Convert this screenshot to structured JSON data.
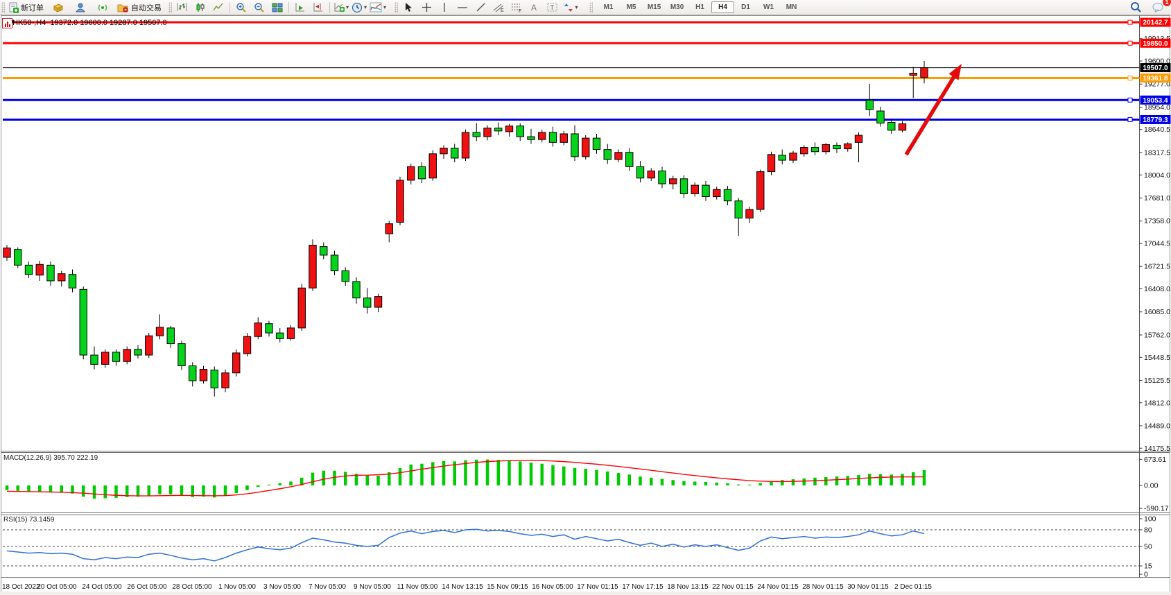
{
  "toolbar": {
    "new_order_label": "新订单",
    "autotrading_label": "自动交易",
    "icons": [
      "new-order",
      "market-watch",
      "community",
      "signal",
      "autotrading",
      "bar-chart",
      "candlestick-chart",
      "line-chart",
      "zoom-in",
      "zoom-out",
      "tile-windows",
      "auto-scroll",
      "chart-shift",
      "new-chart",
      "profiles",
      "indicators",
      "cursor",
      "crosshair",
      "vertical-line",
      "horizontal-line",
      "trendline",
      "equidistant-channel",
      "fibonacci",
      "text",
      "text-label",
      "arrows",
      "search",
      "chat"
    ],
    "timeframes": [
      "M1",
      "M5",
      "M15",
      "M30",
      "H1",
      "H4",
      "D1",
      "W1",
      "MN"
    ],
    "active_timeframe": "H4",
    "notification_count": "1"
  },
  "chart": {
    "symbol_tf": "HK50-,H4",
    "ohlc": "19372.0 19600.0 19287.0 19507.0"
  },
  "chart_data": [
    {
      "type": "candlestick",
      "title": "HK50-,H4",
      "open": 19372.0,
      "high": 19600.0,
      "low": 19287.0,
      "close": 19507.0,
      "up_color": "#f01212",
      "down_color": "#06d41c",
      "wick_color": "#000000",
      "ylim": [
        14100,
        20250
      ],
      "price_ticks": [
        "19913.5",
        "19600.0",
        "19277.0",
        "18954.0",
        "18640.5",
        "18317.5",
        "18004.0",
        "17681.0",
        "17358.0",
        "17044.5",
        "16721.5",
        "16408.0",
        "16085.0",
        "15762.0",
        "15448.5",
        "15125.5",
        "14812.0",
        "14489.0",
        "14175.5"
      ],
      "hlines": [
        {
          "price": 20142.7,
          "label": "20142.7",
          "color": "#ff0000",
          "width": 3
        },
        {
          "price": 19850.0,
          "label": "19850.0",
          "color": "#ff0000",
          "width": 3
        },
        {
          "price": 19507.0,
          "label": "19507.0",
          "color": "#000000",
          "width": 1
        },
        {
          "price": 19361.8,
          "label": "19361.8",
          "color": "#ff9900",
          "width": 3
        },
        {
          "price": 19053.4,
          "label": "19053.4",
          "color": "#0000e8",
          "width": 3
        },
        {
          "price": 18779.3,
          "label": "18779.3",
          "color": "#0000e8",
          "width": 3
        }
      ],
      "arrow": {
        "from_xy": [
          1307,
          223
        ],
        "to_xy": [
          1387,
          92
        ],
        "color": "#e30b0b"
      },
      "x_labels": [
        "18 Oct 2022",
        "20 Oct 05:00",
        "24 Oct 05:00",
        "26 Oct 05:00",
        "28 Oct 05:00",
        "1 Nov 05:00",
        "3 Nov 05:00",
        "7 Nov 05:00",
        "9 Nov 05:00",
        "11 Nov 05:00",
        "14 Nov 13:15",
        "15 Nov 09:15",
        "16 Nov 05:00",
        "17 Nov 01:15",
        "17 Nov 17:15",
        "18 Nov 13:15",
        "22 Nov 01:15",
        "24 Nov 01:15",
        "28 Nov 01:15",
        "30 Nov 01:15",
        "2 Dec 01:15"
      ],
      "candles": [
        [
          16850,
          17020,
          16800,
          16980
        ],
        [
          16960,
          16990,
          16700,
          16740
        ],
        [
          16740,
          16790,
          16560,
          16610
        ],
        [
          16600,
          16800,
          16520,
          16750
        ],
        [
          16740,
          16790,
          16450,
          16520
        ],
        [
          16520,
          16660,
          16440,
          16620
        ],
        [
          16610,
          16680,
          16360,
          16420
        ],
        [
          16400,
          16440,
          15420,
          15480
        ],
        [
          15480,
          15600,
          15280,
          15350
        ],
        [
          15350,
          15560,
          15300,
          15520
        ],
        [
          15520,
          15560,
          15330,
          15390
        ],
        [
          15390,
          15600,
          15350,
          15560
        ],
        [
          15560,
          15620,
          15430,
          15480
        ],
        [
          15480,
          15790,
          15440,
          15750
        ],
        [
          15750,
          16050,
          15700,
          15870
        ],
        [
          15860,
          15890,
          15580,
          15640
        ],
        [
          15640,
          15680,
          15270,
          15330
        ],
        [
          15330,
          15380,
          15040,
          15120
        ],
        [
          15120,
          15330,
          15080,
          15280
        ],
        [
          15270,
          15320,
          14900,
          15020
        ],
        [
          15020,
          15280,
          14960,
          15230
        ],
        [
          15230,
          15560,
          15180,
          15510
        ],
        [
          15500,
          15790,
          15460,
          15740
        ],
        [
          15740,
          16010,
          15700,
          15930
        ],
        [
          15920,
          15960,
          15740,
          15790
        ],
        [
          15790,
          15860,
          15660,
          15710
        ],
        [
          15710,
          15900,
          15680,
          15860
        ],
        [
          15860,
          16480,
          15820,
          16420
        ],
        [
          16420,
          17100,
          16380,
          17020
        ],
        [
          17000,
          17060,
          16820,
          16880
        ],
        [
          16880,
          16940,
          16600,
          16660
        ],
        [
          16660,
          16710,
          16450,
          16510
        ],
        [
          16510,
          16570,
          16200,
          16280
        ],
        [
          16280,
          16420,
          16060,
          16150
        ],
        [
          16150,
          16340,
          16080,
          16300
        ],
        [
          17180,
          17360,
          17060,
          17320
        ],
        [
          17340,
          17980,
          17300,
          17930
        ],
        [
          17930,
          18160,
          17870,
          18120
        ],
        [
          18120,
          18180,
          17890,
          17950
        ],
        [
          17960,
          18350,
          17920,
          18300
        ],
        [
          18300,
          18420,
          18230,
          18380
        ],
        [
          18380,
          18440,
          18180,
          18240
        ],
        [
          18240,
          18640,
          18200,
          18600
        ],
        [
          18600,
          18730,
          18480,
          18540
        ],
        [
          18540,
          18700,
          18490,
          18660
        ],
        [
          18660,
          18740,
          18560,
          18620
        ],
        [
          18610,
          18720,
          18540,
          18690
        ],
        [
          18690,
          18730,
          18480,
          18540
        ],
        [
          18540,
          18650,
          18440,
          18500
        ],
        [
          18500,
          18640,
          18460,
          18600
        ],
        [
          18600,
          18680,
          18400,
          18460
        ],
        [
          18460,
          18620,
          18420,
          18580
        ],
        [
          18580,
          18700,
          18200,
          18260
        ],
        [
          18260,
          18560,
          18220,
          18520
        ],
        [
          18520,
          18580,
          18300,
          18360
        ],
        [
          18360,
          18440,
          18160,
          18220
        ],
        [
          18220,
          18360,
          18180,
          18320
        ],
        [
          18320,
          18380,
          18060,
          18120
        ],
        [
          18120,
          18200,
          17900,
          17960
        ],
        [
          17960,
          18100,
          17920,
          18060
        ],
        [
          18060,
          18120,
          17820,
          17880
        ],
        [
          17880,
          17990,
          17800,
          17950
        ],
        [
          17950,
          18000,
          17680,
          17740
        ],
        [
          17740,
          17900,
          17700,
          17860
        ],
        [
          17860,
          17920,
          17640,
          17700
        ],
        [
          17700,
          17840,
          17660,
          17800
        ],
        [
          17800,
          17850,
          17580,
          17640
        ],
        [
          17640,
          17680,
          17150,
          17400
        ],
        [
          17400,
          17560,
          17330,
          17520
        ],
        [
          17520,
          18080,
          17480,
          18050
        ],
        [
          18050,
          18330,
          18000,
          18290
        ],
        [
          18280,
          18360,
          18150,
          18210
        ],
        [
          18210,
          18340,
          18170,
          18310
        ],
        [
          18300,
          18420,
          18260,
          18390
        ],
        [
          18390,
          18460,
          18280,
          18330
        ],
        [
          18330,
          18450,
          18290,
          18430
        ],
        [
          18420,
          18460,
          18310,
          18370
        ],
        [
          18370,
          18460,
          18330,
          18440
        ],
        [
          18460,
          18600,
          18180,
          18560
        ],
        [
          19053,
          19280,
          18830,
          18920
        ],
        [
          18900,
          18960,
          18680,
          18730
        ],
        [
          18740,
          18790,
          18580,
          18630
        ],
        [
          18630,
          18760,
          18600,
          18720
        ],
        [
          19400,
          19520,
          19080,
          19430
        ],
        [
          19372,
          19600,
          19287,
          19507
        ]
      ]
    },
    {
      "type": "macd",
      "label": "MACD(12,26,9) 395.70 222.19",
      "value": 395.7,
      "signal_value": 222.19,
      "ticks": [
        "673.61",
        "0.00",
        "-590.17"
      ],
      "hist_color": "#00ca00",
      "signal_color": "#ff0000",
      "histogram": [
        -120,
        -140,
        -160,
        -170,
        -180,
        -190,
        -210,
        -290,
        -340,
        -330,
        -320,
        -300,
        -290,
        -260,
        -230,
        -230,
        -270,
        -300,
        -290,
        -310,
        -270,
        -200,
        -120,
        -40,
        20,
        60,
        100,
        200,
        330,
        380,
        380,
        350,
        300,
        260,
        250,
        340,
        450,
        540,
        560,
        600,
        630,
        620,
        650,
        665,
        670,
        660,
        650,
        620,
        590,
        560,
        520,
        490,
        450,
        430,
        400,
        360,
        320,
        280,
        230,
        200,
        170,
        140,
        110,
        100,
        90,
        75,
        55,
        25,
        20,
        60,
        110,
        140,
        160,
        180,
        200,
        215,
        230,
        245,
        270,
        300,
        290,
        280,
        300,
        340,
        396
      ],
      "signal": [
        -150,
        -155,
        -160,
        -165,
        -170,
        -175,
        -185,
        -200,
        -220,
        -240,
        -255,
        -265,
        -270,
        -270,
        -265,
        -260,
        -258,
        -260,
        -265,
        -268,
        -262,
        -245,
        -215,
        -175,
        -130,
        -85,
        -35,
        25,
        95,
        160,
        210,
        245,
        262,
        265,
        275,
        295,
        330,
        375,
        420,
        460,
        500,
        535,
        565,
        595,
        615,
        630,
        640,
        645,
        645,
        640,
        630,
        615,
        595,
        572,
        548,
        520,
        490,
        458,
        424,
        390,
        355,
        320,
        286,
        254,
        224,
        196,
        170,
        146,
        125,
        110,
        102,
        100,
        104,
        112,
        122,
        134,
        148,
        163,
        180,
        196,
        208,
        216,
        220,
        220,
        222
      ]
    },
    {
      "type": "rsi",
      "label": "RSI(15) 73.1459",
      "value": 73.1459,
      "ticks": [
        "100",
        "80",
        "50",
        "15",
        "0"
      ],
      "levels": [
        80,
        50,
        15
      ],
      "color": "#2f6fd6",
      "values": [
        42,
        40,
        38,
        39,
        37,
        38,
        36,
        28,
        26,
        30,
        28,
        31,
        30,
        36,
        38,
        34,
        29,
        26,
        28,
        24,
        30,
        38,
        44,
        49,
        46,
        44,
        47,
        57,
        65,
        62,
        58,
        56,
        52,
        50,
        52,
        66,
        74,
        78,
        73,
        77,
        79,
        75,
        80,
        81,
        78,
        79,
        77,
        73,
        70,
        72,
        68,
        71,
        63,
        68,
        64,
        60,
        63,
        57,
        52,
        56,
        50,
        54,
        49,
        53,
        50,
        53,
        48,
        43,
        47,
        60,
        67,
        64,
        66,
        68,
        65,
        67,
        66,
        68,
        71,
        78,
        73,
        69,
        71,
        78,
        73.15
      ]
    }
  ]
}
